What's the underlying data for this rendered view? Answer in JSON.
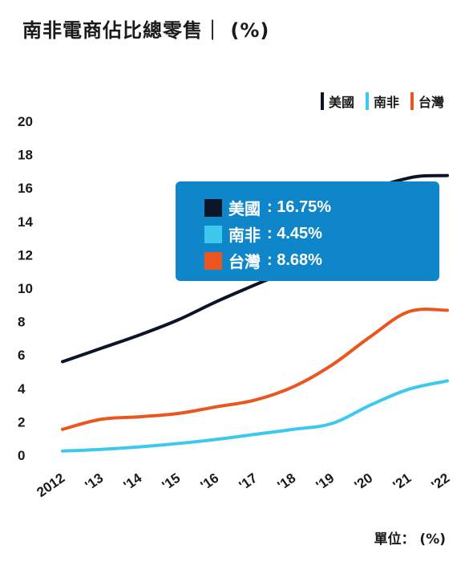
{
  "header": {
    "title": "南非電商佔比總零售｜ (%)"
  },
  "legend": [
    {
      "label": "美國",
      "color": "#0a1628"
    },
    {
      "label": "南非",
      "color": "#3dc8ee"
    },
    {
      "label": "台灣",
      "color": "#ea5520"
    }
  ],
  "tooltip": [
    {
      "name": "美國",
      "value": ": 16.75%",
      "color": "#0a1628"
    },
    {
      "name": "南非",
      "value": ": 4.45%",
      "color": "#3dc8ee"
    },
    {
      "name": "台灣",
      "value": ": 8.68%",
      "color": "#ea5520"
    }
  ],
  "unit_label": "單位： (%)",
  "chart_data": {
    "type": "line",
    "x": [
      "2012",
      "'13",
      "'14",
      "'15",
      "'16",
      "'17",
      "'18",
      "'19",
      "'20",
      "'21",
      "'22"
    ],
    "ylim": [
      0,
      20
    ],
    "yticks": [
      0,
      2,
      4,
      6,
      8,
      10,
      12,
      14,
      16,
      18,
      20
    ],
    "grid": false,
    "legend_position": "top-right",
    "series": [
      {
        "name": "美國",
        "color": "#0a1628",
        "values": [
          5.6,
          6.4,
          7.2,
          8.1,
          9.2,
          10.2,
          11.2,
          12.5,
          15.6,
          16.6,
          16.75
        ]
      },
      {
        "name": "南非",
        "color": "#3dc8ee",
        "values": [
          0.25,
          0.35,
          0.5,
          0.7,
          0.95,
          1.25,
          1.55,
          1.9,
          3.0,
          3.95,
          4.45
        ]
      },
      {
        "name": "台灣",
        "color": "#ea5520",
        "values": [
          1.55,
          2.15,
          2.3,
          2.5,
          2.9,
          3.3,
          4.1,
          5.4,
          7.1,
          8.6,
          8.68
        ]
      }
    ]
  }
}
